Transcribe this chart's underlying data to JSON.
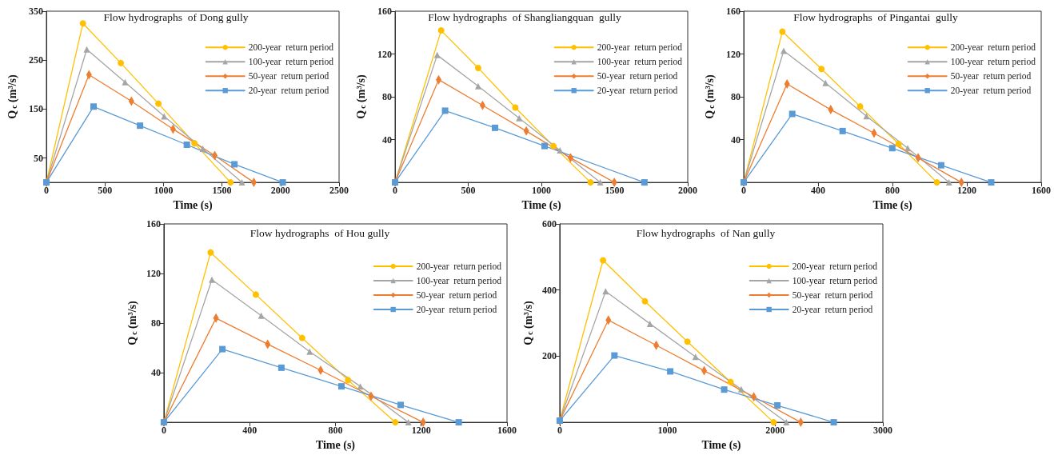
{
  "chart_data": [
    {
      "type": "line",
      "title": "Flow hydrographs  of Dong gully",
      "xlabel": "Time (s)",
      "ylabel": "Q$_{c}$ (m³/s)",
      "xlim": [
        0,
        2500
      ],
      "xticks": [
        0,
        500,
        1000,
        1500,
        2000,
        2500
      ],
      "ylim": [
        0,
        350
      ],
      "yticks": [
        50,
        150,
        250,
        350
      ],
      "legend": "top right",
      "grid": false,
      "series": [
        {
          "name": "200-year  return period",
          "color": "#ffc000",
          "marker": "circle",
          "x": [
            0,
            312,
            636,
            957,
            1265,
            1573
          ],
          "values": [
            0,
            325,
            244,
            161,
            80,
            0
          ]
        },
        {
          "name": "100-year  return period",
          "color": "#a5a5a5",
          "marker": "triangle",
          "x": [
            0,
            345,
            672,
            1006,
            1336,
            1670
          ],
          "values": [
            0,
            272,
            205,
            135,
            69,
            0
          ]
        },
        {
          "name": "50-year  return period",
          "color": "#ed7d31",
          "marker": "diamond",
          "x": [
            0,
            364,
            726,
            1082,
            1438,
            1772
          ],
          "values": [
            0,
            220,
            166,
            109,
            55,
            0
          ]
        },
        {
          "name": "20-year  return period",
          "color": "#5b9bd5",
          "marker": "square",
          "x": [
            0,
            403,
            800,
            1200,
            1606,
            2019
          ],
          "values": [
            0,
            155,
            116,
            77,
            37,
            0
          ]
        }
      ]
    },
    {
      "type": "line",
      "title": "Flow hydrographs  of Shangliangquan  gully",
      "xlabel": "Time (s)",
      "ylabel": "Q$_{c}$ (m³/s)",
      "xlim": [
        0,
        2000
      ],
      "xticks": [
        0,
        500,
        1000,
        1500,
        2000
      ],
      "ylim": [
        0,
        160
      ],
      "yticks": [
        40,
        80,
        120,
        160
      ],
      "legend": "top right",
      "grid": false,
      "series": [
        {
          "name": "200-year  return period",
          "color": "#ffc000",
          "marker": "circle",
          "x": [
            0,
            315,
            568,
            822,
            1082,
            1336
          ],
          "values": [
            0,
            142,
            107,
            70,
            34,
            0
          ]
        },
        {
          "name": "100-year  return period",
          "color": "#a5a5a5",
          "marker": "triangle",
          "x": [
            0,
            288,
            568,
            848,
            1127,
            1402
          ],
          "values": [
            0,
            119,
            90,
            60,
            30,
            0
          ]
        },
        {
          "name": "50-year  return period",
          "color": "#ed7d31",
          "marker": "diamond",
          "x": [
            0,
            298,
            598,
            897,
            1199,
            1498
          ],
          "values": [
            0,
            96,
            72,
            48,
            23,
            0
          ]
        },
        {
          "name": "20-year  return period",
          "color": "#5b9bd5",
          "marker": "square",
          "x": [
            0,
            342,
            683,
            1022,
            1704
          ],
          "values": [
            0,
            67,
            51,
            34,
            0
          ]
        }
      ]
    },
    {
      "type": "line",
      "title": "Flow hydrographs  of Pingantai  gully",
      "xlabel": "Time (s)",
      "ylabel": "Q$_{c}$ (m³/s)",
      "xlim": [
        0,
        1600
      ],
      "xticks": [
        0,
        400,
        800,
        1200,
        1600
      ],
      "ylim": [
        0,
        160
      ],
      "yticks": [
        40,
        80,
        120,
        160
      ],
      "legend": "top right",
      "grid": false,
      "series": [
        {
          "name": "200-year  return period",
          "color": "#ffc000",
          "marker": "circle",
          "x": [
            0,
            208,
            418,
            626,
            833,
            1039
          ],
          "values": [
            0,
            141,
            106,
            71,
            36,
            0
          ]
        },
        {
          "name": "100-year  return period",
          "color": "#a5a5a5",
          "marker": "triangle",
          "x": [
            0,
            215,
            440,
            660,
            882,
            1104
          ],
          "values": [
            0,
            123,
            93,
            62,
            32,
            0
          ]
        },
        {
          "name": "50-year  return period",
          "color": "#ed7d31",
          "marker": "diamond",
          "x": [
            0,
            233,
            468,
            701,
            938,
            1171
          ],
          "values": [
            0,
            92,
            68,
            46,
            23,
            0
          ]
        },
        {
          "name": "20-year  return period",
          "color": "#5b9bd5",
          "marker": "square",
          "x": [
            0,
            261,
            532,
            799,
            1062,
            1331
          ],
          "values": [
            0,
            64,
            48,
            32,
            16,
            0
          ]
        }
      ]
    },
    {
      "type": "line",
      "title": "Flow hydrographs  of Hou gully",
      "xlabel": "Time (s)",
      "ylabel": "Q$_{c}$ (m³/s)",
      "xlim": [
        0,
        1600
      ],
      "xticks": [
        0,
        400,
        800,
        1200,
        1600
      ],
      "ylim": [
        0,
        160
      ],
      "yticks": [
        40,
        80,
        120,
        160
      ],
      "legend": "top right",
      "grid": false,
      "series": [
        {
          "name": "200-year  return period",
          "color": "#ffc000",
          "marker": "circle",
          "x": [
            0,
            218,
            429,
            645,
            859,
            1079
          ],
          "values": [
            0,
            137,
            103,
            68,
            34,
            0
          ]
        },
        {
          "name": "100-year  return period",
          "color": "#a5a5a5",
          "marker": "triangle",
          "x": [
            0,
            224,
            454,
            680,
            916,
            1140
          ],
          "values": [
            0,
            115,
            86,
            57,
            29,
            0
          ]
        },
        {
          "name": "50-year  return period",
          "color": "#ed7d31",
          "marker": "diamond",
          "x": [
            0,
            243,
            484,
            731,
            966,
            1209
          ],
          "values": [
            0,
            84,
            63,
            42,
            21,
            0
          ]
        },
        {
          "name": "20-year  return period",
          "color": "#5b9bd5",
          "marker": "square",
          "x": [
            0,
            273,
            548,
            828,
            1104,
            1375
          ],
          "values": [
            0,
            59,
            44,
            29,
            14,
            0
          ]
        }
      ]
    },
    {
      "type": "line",
      "title": "Flow hydrographs  of Nan gully",
      "xlabel": "Time (s)",
      "ylabel": "Q$_{c}$ (m³/s)",
      "xlim": [
        0,
        3000
      ],
      "xticks": [
        0,
        1000,
        2000,
        3000
      ],
      "ylim": [
        0,
        600
      ],
      "yticks": [
        200,
        400,
        600
      ],
      "legend": "top right",
      "grid": false,
      "series": [
        {
          "name": "200-year  return period",
          "color": "#ffc000",
          "marker": "circle",
          "x": [
            0,
            402,
            791,
            1186,
            1586,
            1986
          ],
          "values": [
            5,
            490,
            366,
            244,
            122,
            0
          ]
        },
        {
          "name": "100-year  return period",
          "color": "#a5a5a5",
          "marker": "triangle",
          "x": [
            0,
            426,
            838,
            1261,
            1685,
            2104
          ],
          "values": [
            5,
            396,
            298,
            198,
            100,
            0
          ]
        },
        {
          "name": "50-year  return period",
          "color": "#ed7d31",
          "marker": "diamond",
          "x": [
            0,
            452,
            896,
            1341,
            1802,
            2238
          ],
          "values": [
            5,
            309,
            233,
            156,
            77,
            0
          ]
        },
        {
          "name": "20-year  return period",
          "color": "#5b9bd5",
          "marker": "square",
          "x": [
            0,
            508,
            1026,
            1527,
            2021,
            2544
          ],
          "values": [
            5,
            202,
            154,
            99,
            51,
            0
          ]
        }
      ]
    }
  ]
}
